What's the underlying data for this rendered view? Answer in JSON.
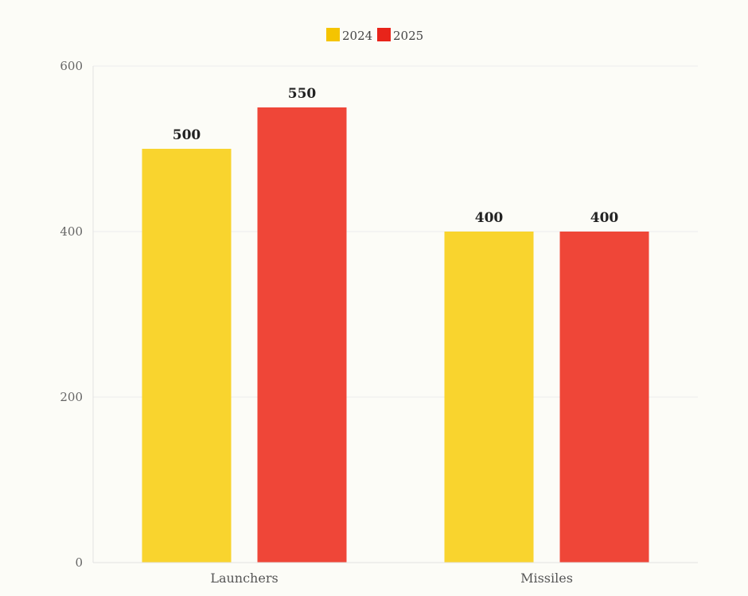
{
  "chart_data": {
    "type": "bar",
    "categories": [
      "Launchers",
      "Missiles"
    ],
    "series": [
      {
        "name": "2024",
        "values": [
          500,
          400
        ],
        "color": "#f9d42e"
      },
      {
        "name": "2025",
        "values": [
          550,
          400
        ],
        "color": "#ef4638"
      }
    ],
    "legend_swatch_colors": [
      "#f5c400",
      "#e8241a"
    ],
    "title": "",
    "xlabel": "",
    "ylabel": "",
    "ylim": [
      0,
      600
    ],
    "yticks": [
      0,
      200,
      400,
      600
    ],
    "grid": true,
    "legend_position": "top-center",
    "data_labels": true
  }
}
